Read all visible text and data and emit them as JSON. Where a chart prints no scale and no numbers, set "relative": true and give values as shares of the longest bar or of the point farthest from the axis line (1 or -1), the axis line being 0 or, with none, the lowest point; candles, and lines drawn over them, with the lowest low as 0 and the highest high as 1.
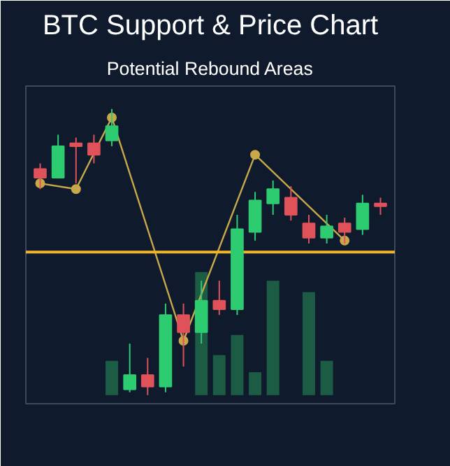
{
  "chart_data": {
    "type": "candlestick",
    "title": "BTC Support & Price Chart",
    "subtitle": "Potential Rebound Areas",
    "relative": true,
    "categories": [
      null,
      null,
      null,
      null,
      null,
      null,
      null,
      null,
      null,
      null,
      null,
      null,
      null,
      null,
      null,
      null,
      null,
      null,
      null,
      null
    ],
    "ohlc": [
      [
        0.79,
        0.81,
        0.72,
        0.76
      ],
      [
        0.76,
        0.91,
        0.76,
        0.87
      ],
      [
        0.88,
        0.9,
        0.74,
        0.87
      ],
      [
        0.88,
        0.91,
        0.81,
        0.84
      ],
      [
        0.89,
        1.0,
        0.87,
        0.94
      ],
      [
        0.02,
        0.18,
        0.01,
        0.07
      ],
      [
        0.07,
        0.13,
        0.0,
        0.03
      ],
      [
        0.03,
        0.32,
        0.01,
        0.28
      ],
      [
        0.28,
        0.32,
        0.1,
        0.22
      ],
      [
        0.22,
        0.4,
        0.18,
        0.33
      ],
      [
        0.33,
        0.4,
        0.28,
        0.3
      ],
      [
        0.3,
        0.63,
        0.28,
        0.58
      ],
      [
        0.57,
        0.71,
        0.54,
        0.68
      ],
      [
        0.67,
        0.75,
        0.63,
        0.72
      ],
      [
        0.69,
        0.73,
        0.61,
        0.63
      ],
      [
        0.6,
        0.63,
        0.53,
        0.55
      ],
      [
        0.55,
        0.63,
        0.53,
        0.59
      ],
      [
        0.6,
        0.62,
        0.53,
        0.57
      ],
      [
        0.58,
        0.7,
        0.56,
        0.67
      ],
      [
        0.67,
        0.69,
        0.63,
        0.66
      ]
    ],
    "series": [
      {
        "type": "bar",
        "color": "#1f6b4a",
        "values": [
          null,
          null,
          null,
          null,
          0.12,
          null,
          null,
          null,
          null,
          0.43,
          0.14,
          0.21,
          0.08,
          0.4,
          null,
          0.36,
          0.12,
          null,
          null,
          null
        ]
      },
      {
        "type": "line",
        "color": "#c8a84b",
        "marker": "circle",
        "values": [
          0.74,
          null,
          0.72,
          null,
          0.97,
          null,
          null,
          null,
          0.19,
          null,
          null,
          null,
          0.84,
          null,
          null,
          null,
          null,
          0.54,
          null,
          null
        ]
      }
    ],
    "ref_lines": [
      {
        "axis": "y",
        "value": 0.5,
        "color": "#f0b429"
      }
    ]
  }
}
